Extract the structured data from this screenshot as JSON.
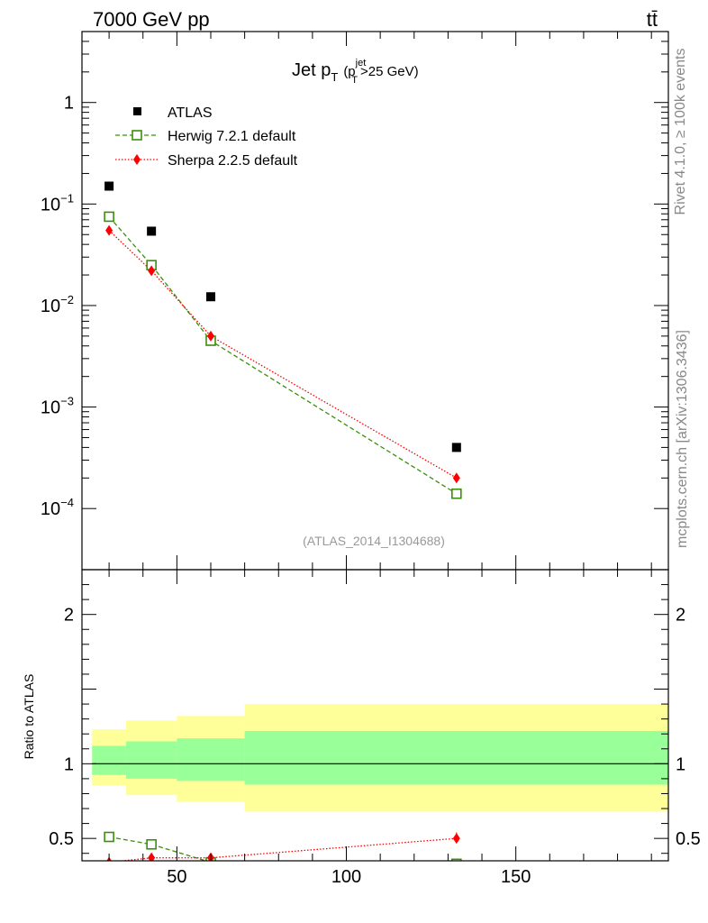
{
  "header": {
    "energy_label": "7000 GeV pp",
    "process_label": "tt̄"
  },
  "side_labels": {
    "rivet": "Rivet 4.1.0, ≥ 100k events",
    "mcplots": "mcplots.cern.ch [arXiv:1306.3436]"
  },
  "colors": {
    "data": "#000000",
    "herwig": "#3a8f0a",
    "sherpa": "#ff0000",
    "band_inner": "#99ff99",
    "band_outer": "#ffff99"
  },
  "chart_data": [
    {
      "type": "scatter",
      "panel": "main",
      "title": "Jet p_T (p_T^jet>25 GeV)",
      "title_parts": {
        "main": "Jet p",
        "sub": "T",
        "paren_open": "(p",
        "sup": "jet",
        "sub2": "T",
        "paren_close": ">25 GeV)"
      },
      "xlabel": "",
      "ylabel": "",
      "yscale": "log",
      "xlim": [
        22,
        195
      ],
      "ylim": [
        2.5e-05,
        5
      ],
      "yticks": [
        {
          "value": 1,
          "label": "1",
          "sup": ""
        },
        {
          "value": 0.1,
          "label": "10",
          "sup": "−1"
        },
        {
          "value": 0.01,
          "label": "10",
          "sup": "−2"
        },
        {
          "value": 0.001,
          "label": "10",
          "sup": "−3"
        },
        {
          "value": 0.0001,
          "label": "10",
          "sup": "−4"
        }
      ],
      "legend_position": "top-left",
      "annotation": "(ATLAS_2014_I1304688)",
      "series": [
        {
          "name": "ATLAS",
          "marker": "square-filled",
          "x": [
            30,
            42.5,
            60,
            132.5
          ],
          "y": [
            0.15,
            0.054,
            0.0122,
            0.0004
          ]
        },
        {
          "name": "Herwig 7.2.1 default",
          "marker": "square-open",
          "line": "dashed",
          "x": [
            30,
            42.5,
            60,
            132.5
          ],
          "y": [
            0.075,
            0.025,
            0.0045,
            0.00014
          ]
        },
        {
          "name": "Sherpa 2.2.5 default",
          "marker": "diamond",
          "line": "dotted",
          "x": [
            30,
            42.5,
            60,
            132.5
          ],
          "y": [
            0.055,
            0.022,
            0.005,
            0.0002
          ]
        }
      ]
    },
    {
      "type": "scatter",
      "panel": "ratio",
      "ylabel": "Ratio to ATLAS",
      "xlim": [
        22,
        195
      ],
      "ylim": [
        0.35,
        2.3
      ],
      "xticks": [
        50,
        100,
        150
      ],
      "xticklabels": [
        "50",
        "100",
        "150"
      ],
      "yticks": [
        0.5,
        1,
        2
      ],
      "yticklabels": [
        "0.5",
        "1",
        "2"
      ],
      "bands": [
        {
          "x0": 25,
          "x1": 35,
          "inner": [
            0.925,
            1.12
          ],
          "outer": [
            0.855,
            1.23
          ]
        },
        {
          "x0": 35,
          "x1": 50,
          "inner": [
            0.9,
            1.15
          ],
          "outer": [
            0.79,
            1.29
          ]
        },
        {
          "x0": 50,
          "x1": 70,
          "inner": [
            0.885,
            1.17
          ],
          "outer": [
            0.745,
            1.32
          ]
        },
        {
          "x0": 70,
          "x1": 195,
          "inner": [
            0.86,
            1.22
          ],
          "outer": [
            0.68,
            1.4
          ]
        }
      ],
      "series": [
        {
          "name": "Herwig 7.2.1 default",
          "x": [
            30,
            42.5,
            60,
            132.5
          ],
          "y": [
            0.51,
            0.46,
            0.34,
            0.33
          ]
        },
        {
          "name": "Sherpa 2.2.5 default",
          "x": [
            30,
            42.5,
            60,
            132.5
          ],
          "y": [
            0.34,
            0.37,
            0.37,
            0.5
          ],
          "yerr": [
            0,
            0,
            0,
            0.04
          ]
        }
      ]
    }
  ]
}
